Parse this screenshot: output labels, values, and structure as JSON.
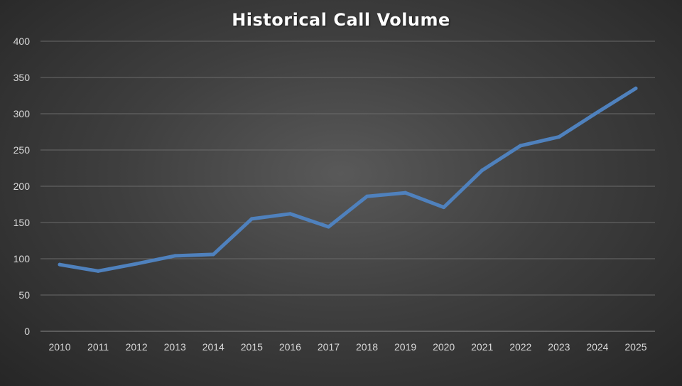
{
  "chart_data": {
    "type": "line",
    "title": "Historical Call Volume",
    "xlabel": "",
    "ylabel": "",
    "categories": [
      "2010",
      "2011",
      "2012",
      "2013",
      "2014",
      "2015",
      "2016",
      "2017",
      "2018",
      "2019",
      "2020",
      "2021",
      "2022",
      "2023",
      "2024",
      "2025"
    ],
    "series": [
      {
        "values": [
          92,
          83,
          93,
          104,
          106,
          155,
          162,
          144,
          186,
          191,
          171,
          222,
          256,
          268,
          302,
          335
        ],
        "color": "#4f81bd"
      }
    ],
    "ylim": [
      0,
      400
    ],
    "yticks": [
      0,
      50,
      100,
      150,
      200,
      250,
      300,
      350,
      400
    ],
    "grid": true,
    "legend": "none"
  }
}
